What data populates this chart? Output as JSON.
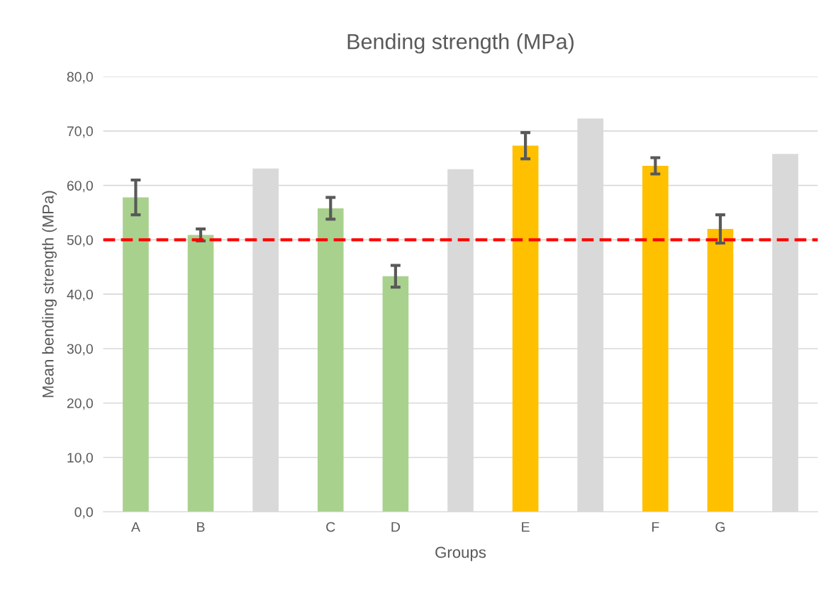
{
  "chart_data": {
    "type": "bar",
    "title": "Bending strength (MPa)",
    "xlabel": "Groups",
    "ylabel": "Mean bending strength (MPa)",
    "categories": [
      "A",
      "B",
      null,
      "C",
      "D",
      null,
      "E",
      null,
      "F",
      "G",
      null
    ],
    "values": [
      57.8,
      50.9,
      63.1,
      55.8,
      43.3,
      63.0,
      67.3,
      72.3,
      63.6,
      52.0,
      65.8
    ],
    "errors": [
      3.2,
      1.1,
      null,
      2.0,
      2.0,
      null,
      2.4,
      null,
      1.5,
      2.6,
      null
    ],
    "colors": [
      "#a9d18e",
      "#a9d18e",
      "#d9d9d9",
      "#a9d18e",
      "#a9d18e",
      "#d9d9d9",
      "#ffc000",
      "#d9d9d9",
      "#ffc000",
      "#ffc000",
      "#d9d9d9"
    ],
    "ylim": [
      0,
      80
    ],
    "yticks": [
      {
        "value": 0,
        "label": "0,0"
      },
      {
        "value": 10,
        "label": "10,0"
      },
      {
        "value": 20,
        "label": "20,0"
      },
      {
        "value": 30,
        "label": "30,0"
      },
      {
        "value": 40,
        "label": "40,0"
      },
      {
        "value": 50,
        "label": "50,0"
      },
      {
        "value": 60,
        "label": "60,0"
      },
      {
        "value": 70,
        "label": "70,0"
      },
      {
        "value": 80,
        "label": "80,0"
      }
    ],
    "ref_lines": [
      {
        "axis": "y",
        "value": 50,
        "color": "#ff0000",
        "line_style": "dashed"
      }
    ],
    "grid": "y"
  }
}
